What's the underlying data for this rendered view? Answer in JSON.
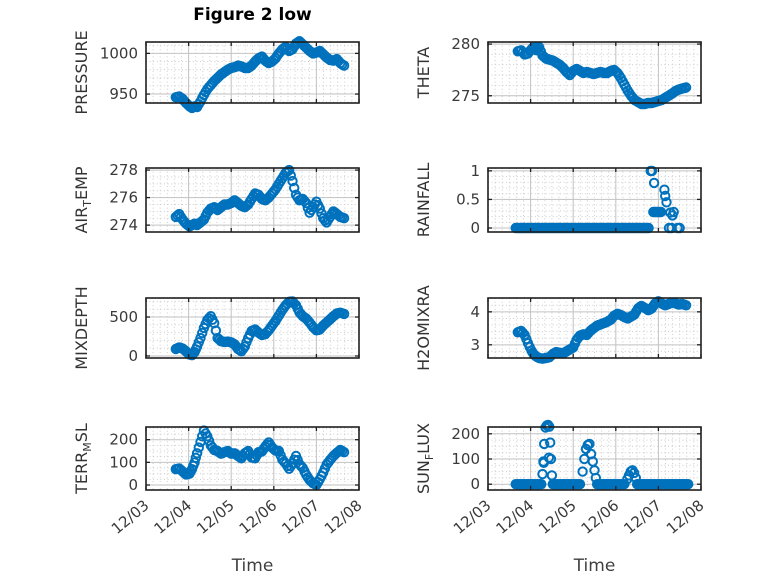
{
  "figure": {
    "title": "Figure 2 low",
    "xlabel": "Time",
    "x_unit": "days since 12/03 00:00",
    "x_tick_labels": [
      "12/03",
      "12/04",
      "12/05",
      "12/06",
      "12/07",
      "12/08"
    ],
    "marker_color": "#0072BD",
    "marker_style": "open-circle",
    "box_color": "#1f1f1f",
    "grid_major_color": "#c2c2c2",
    "grid_minor_color": "#cccccc",
    "text_color": "#3a3a3a",
    "grid": "major solid + minor dotted"
  },
  "chart_data": [
    {
      "name": "PRESSURE",
      "ylabel_parts": [
        {
          "t": "PRESSURE",
          "sub": false
        }
      ],
      "type": "scatter",
      "position": {
        "row": 0,
        "col": 0
      },
      "yticks": [
        950,
        1000
      ],
      "yminor_step": 10,
      "ylim": [
        939,
        1014
      ],
      "xlim_days": [
        0,
        5
      ],
      "show_x_tick_labels": false,
      "dense": true,
      "x_days": [
        0.7,
        0.78,
        0.86,
        0.94,
        1.02,
        1.08,
        1.14,
        1.2,
        1.28,
        1.36,
        1.44,
        1.52,
        1.6,
        1.68,
        1.76,
        1.84,
        1.92,
        2.0,
        2.08,
        2.16,
        2.24,
        2.32,
        2.4,
        2.48,
        2.56,
        2.64,
        2.72,
        2.8,
        2.88,
        2.96,
        3.04,
        3.12,
        3.2,
        3.28,
        3.36,
        3.44,
        3.52,
        3.6,
        3.68,
        3.76,
        3.84,
        3.92,
        4.0,
        4.08,
        4.16,
        4.24,
        4.32,
        4.4,
        4.48,
        4.56,
        4.65
      ],
      "y": [
        946,
        947,
        944,
        939,
        935,
        933,
        935,
        934,
        941,
        949,
        956,
        961,
        966,
        970,
        974,
        977,
        980,
        982,
        983,
        985,
        984,
        982,
        982,
        985,
        990,
        994,
        996,
        991,
        988,
        990,
        994,
        1000,
        1005,
        1008,
        1003,
        1005,
        1012,
        1015,
        1011,
        1007,
        1003,
        1000,
        1001,
        1003,
        999,
        995,
        992,
        991,
        993,
        988,
        985
      ]
    },
    {
      "name": "THETA",
      "ylabel_parts": [
        {
          "t": "THETA",
          "sub": false
        }
      ],
      "type": "scatter",
      "position": {
        "row": 0,
        "col": 1
      },
      "yticks": [
        275,
        280
      ],
      "yminor_step": 1,
      "ylim": [
        274.3,
        280.2
      ],
      "xlim_days": [
        0,
        5
      ],
      "show_x_tick_labels": false,
      "dense": true,
      "x_days": [
        0.7,
        0.78,
        0.86,
        0.94,
        1.02,
        1.08,
        1.14,
        1.2,
        1.28,
        1.36,
        1.44,
        1.52,
        1.6,
        1.68,
        1.76,
        1.84,
        1.92,
        2.0,
        2.08,
        2.16,
        2.24,
        2.32,
        2.4,
        2.48,
        2.56,
        2.64,
        2.72,
        2.8,
        2.88,
        2.96,
        3.04,
        3.12,
        3.2,
        3.28,
        3.36,
        3.44,
        3.52,
        3.6,
        3.68,
        3.76,
        3.84,
        3.92,
        4.0,
        4.08,
        4.16,
        4.24,
        4.32,
        4.4,
        4.48,
        4.56,
        4.65
      ],
      "y": [
        279.3,
        279.4,
        279.0,
        279.1,
        279.5,
        279.7,
        279.4,
        279.7,
        278.9,
        278.6,
        278.5,
        278.4,
        278.2,
        278.0,
        277.7,
        277.3,
        277.0,
        277.4,
        277.6,
        277.4,
        277.2,
        277.3,
        277.2,
        277.1,
        277.2,
        277.3,
        277.2,
        277.2,
        277.4,
        277.5,
        277.2,
        276.7,
        276.1,
        275.5,
        275.0,
        274.6,
        274.4,
        274.2,
        274.2,
        274.3,
        274.3,
        274.4,
        274.5,
        274.6,
        274.8,
        275.0,
        275.2,
        275.45,
        275.6,
        275.7,
        275.8
      ]
    },
    {
      "name": "AIR_TEMP",
      "ylabel_parts": [
        {
          "t": "AIR",
          "sub": false
        },
        {
          "t": "T",
          "sub": true
        },
        {
          "t": "EMP",
          "sub": false
        }
      ],
      "type": "scatter",
      "position": {
        "row": 1,
        "col": 0
      },
      "yticks": [
        274,
        276,
        278
      ],
      "yminor_step": 0.5,
      "ylim": [
        273.5,
        278.15
      ],
      "xlim_days": [
        0,
        5
      ],
      "show_x_tick_labels": false,
      "dense": true,
      "x_days": [
        0.7,
        0.78,
        0.86,
        0.94,
        1.02,
        1.08,
        1.14,
        1.2,
        1.28,
        1.36,
        1.44,
        1.52,
        1.6,
        1.68,
        1.76,
        1.84,
        1.92,
        2.0,
        2.08,
        2.16,
        2.24,
        2.32,
        2.4,
        2.48,
        2.56,
        2.64,
        2.72,
        2.8,
        2.88,
        2.96,
        3.04,
        3.12,
        3.2,
        3.28,
        3.36,
        3.44,
        3.52,
        3.6,
        3.68,
        3.76,
        3.84,
        3.92,
        4.0,
        4.08,
        4.16,
        4.24,
        4.32,
        4.4,
        4.48,
        4.56,
        4.65
      ],
      "y": [
        274.6,
        274.8,
        274.4,
        274.1,
        273.9,
        274.0,
        274.1,
        274.0,
        274.2,
        274.4,
        274.9,
        275.2,
        275.3,
        275.1,
        275.3,
        275.5,
        275.5,
        275.6,
        275.8,
        275.6,
        275.4,
        275.3,
        275.5,
        275.9,
        276.3,
        276.2,
        275.9,
        275.8,
        276.0,
        276.3,
        276.6,
        277.0,
        277.4,
        277.8,
        278.0,
        277.2,
        276.2,
        275.8,
        275.9,
        275.6,
        274.9,
        275.3,
        275.7,
        275.2,
        274.5,
        274.2,
        274.6,
        275.0,
        274.8,
        274.6,
        274.5
      ]
    },
    {
      "name": "RAINFALL",
      "ylabel_parts": [
        {
          "t": "RAINFALL",
          "sub": false
        }
      ],
      "type": "scatter",
      "position": {
        "row": 1,
        "col": 1
      },
      "yticks": [
        0,
        0.5,
        1
      ],
      "yminor_step": 0.1,
      "ylim": [
        -0.07,
        1.05
      ],
      "xlim_days": [
        0,
        5
      ],
      "show_x_tick_labels": false,
      "dense": false,
      "zero_spans": [
        [
          0.65,
          3.8
        ]
      ],
      "x_days": [
        3.82,
        3.85,
        3.9,
        3.88,
        3.91,
        3.94,
        3.97,
        4.0,
        4.03,
        4.06,
        4.14,
        4.16,
        4.19,
        4.28,
        4.33,
        4.36,
        4.25,
        4.31,
        4.45,
        4.5
      ],
      "y": [
        1.0,
        1.0,
        0.79,
        0.28,
        0.28,
        0.28,
        0.28,
        0.28,
        0.28,
        0.28,
        0.67,
        0.56,
        0.45,
        0.27,
        0.22,
        0.28,
        0,
        0,
        0,
        0
      ]
    },
    {
      "name": "MIXDEPTH",
      "ylabel_parts": [
        {
          "t": "MIXDEPTH",
          "sub": false
        }
      ],
      "type": "scatter",
      "position": {
        "row": 2,
        "col": 0
      },
      "yticks": [
        0,
        500
      ],
      "yminor_step": 100,
      "ylim": [
        -26,
        744
      ],
      "xlim_days": [
        0,
        5
      ],
      "show_x_tick_labels": false,
      "dense": true,
      "x_days": [
        0.7,
        0.78,
        0.86,
        0.94,
        1.02,
        1.08,
        1.14,
        1.2,
        1.28,
        1.36,
        1.44,
        1.52,
        1.6,
        1.68,
        1.76,
        1.84,
        1.92,
        2.0,
        2.08,
        2.16,
        2.24,
        2.32,
        2.4,
        2.48,
        2.56,
        2.64,
        2.72,
        2.8,
        2.88,
        2.96,
        3.04,
        3.12,
        3.2,
        3.28,
        3.36,
        3.44,
        3.52,
        3.6,
        3.68,
        3.76,
        3.84,
        3.92,
        4.0,
        4.08,
        4.16,
        4.24,
        4.32,
        4.4,
        4.48,
        4.56,
        4.65
      ],
      "y": [
        90,
        110,
        95,
        60,
        20,
        10,
        50,
        120,
        230,
        360,
        460,
        510,
        420,
        230,
        190,
        180,
        185,
        175,
        150,
        90,
        60,
        120,
        230,
        320,
        340,
        300,
        270,
        280,
        330,
        390,
        450,
        520,
        590,
        650,
        695,
        700,
        650,
        560,
        510,
        480,
        430,
        370,
        330,
        340,
        390,
        430,
        470,
        510,
        545,
        555,
        540
      ]
    },
    {
      "name": "H2OMIXRA",
      "ylabel_parts": [
        {
          "t": "H2OMIXRA",
          "sub": false
        }
      ],
      "type": "scatter",
      "position": {
        "row": 2,
        "col": 1
      },
      "yticks": [
        3,
        4
      ],
      "yminor_step": 0.2,
      "ylim": [
        2.6,
        4.42
      ],
      "xlim_days": [
        0,
        5
      ],
      "show_x_tick_labels": false,
      "dense": true,
      "x_days": [
        0.7,
        0.78,
        0.86,
        0.94,
        1.02,
        1.08,
        1.14,
        1.2,
        1.28,
        1.36,
        1.44,
        1.52,
        1.6,
        1.68,
        1.76,
        1.84,
        1.92,
        2.0,
        2.08,
        2.16,
        2.24,
        2.32,
        2.4,
        2.48,
        2.56,
        2.64,
        2.72,
        2.8,
        2.88,
        2.96,
        3.04,
        3.12,
        3.2,
        3.28,
        3.36,
        3.44,
        3.52,
        3.6,
        3.68,
        3.76,
        3.84,
        3.92,
        4.0,
        4.08,
        4.16,
        4.24,
        4.32,
        4.4,
        4.48,
        4.56,
        4.65
      ],
      "y": [
        3.38,
        3.42,
        3.3,
        3.05,
        2.82,
        2.7,
        2.64,
        2.6,
        2.58,
        2.6,
        2.62,
        2.72,
        2.78,
        2.76,
        2.74,
        2.8,
        2.86,
        2.92,
        3.15,
        3.28,
        3.32,
        3.3,
        3.42,
        3.5,
        3.58,
        3.62,
        3.66,
        3.7,
        3.76,
        3.88,
        3.94,
        3.9,
        3.84,
        3.8,
        3.86,
        3.92,
        4.1,
        4.18,
        4.12,
        4.05,
        4.1,
        4.25,
        4.32,
        4.25,
        4.2,
        4.24,
        4.28,
        4.26,
        4.22,
        4.24,
        4.2
      ]
    },
    {
      "name": "TERR_MSL",
      "ylabel_parts": [
        {
          "t": "TERR",
          "sub": false
        },
        {
          "t": "M",
          "sub": true
        },
        {
          "t": "SL",
          "sub": false
        }
      ],
      "type": "scatter",
      "position": {
        "row": 3,
        "col": 0
      },
      "yticks": [
        0,
        100,
        200
      ],
      "yminor_step": 25,
      "ylim": [
        -22,
        256
      ],
      "xlim_days": [
        0,
        5
      ],
      "show_x_tick_labels": true,
      "dense": true,
      "x_days": [
        0.7,
        0.78,
        0.86,
        0.94,
        1.02,
        1.08,
        1.14,
        1.2,
        1.28,
        1.36,
        1.44,
        1.52,
        1.6,
        1.68,
        1.76,
        1.84,
        1.92,
        2.0,
        2.08,
        2.16,
        2.24,
        2.32,
        2.4,
        2.48,
        2.56,
        2.64,
        2.72,
        2.8,
        2.88,
        2.96,
        3.04,
        3.12,
        3.2,
        3.28,
        3.36,
        3.44,
        3.52,
        3.6,
        3.68,
        3.76,
        3.84,
        3.92,
        4.0,
        4.08,
        4.16,
        4.24,
        4.32,
        4.4,
        4.48,
        4.56,
        4.65
      ],
      "y": [
        70,
        73,
        60,
        47,
        50,
        70,
        100,
        140,
        190,
        240,
        215,
        175,
        155,
        150,
        138,
        145,
        150,
        138,
        140,
        128,
        118,
        140,
        150,
        122,
        118,
        145,
        148,
        170,
        188,
        165,
        152,
        150,
        112,
        95,
        72,
        95,
        128,
        92,
        75,
        45,
        22,
        8,
        0,
        25,
        55,
        90,
        110,
        128,
        142,
        155,
        145
      ]
    },
    {
      "name": "SUN_FLUX",
      "ylabel_parts": [
        {
          "t": "SUN",
          "sub": false
        },
        {
          "t": "F",
          "sub": true
        },
        {
          "t": "LUX",
          "sub": false
        }
      ],
      "type": "scatter",
      "position": {
        "row": 3,
        "col": 1
      },
      "yticks": [
        0,
        100,
        200
      ],
      "yminor_step": 25,
      "ylim": [
        -23,
        227
      ],
      "xlim_days": [
        0,
        5
      ],
      "show_x_tick_labels": true,
      "dense": false,
      "zero_spans": [
        [
          0.65,
          1.26
        ],
        [
          1.52,
          2.2
        ],
        [
          2.56,
          3.24
        ],
        [
          3.5,
          4.72
        ]
      ],
      "x_days": [
        1.28,
        1.3,
        1.31,
        1.32,
        1.35,
        1.38,
        1.41,
        1.43,
        1.44,
        1.46,
        1.48,
        1.5,
        2.22,
        2.26,
        2.3,
        2.34,
        2.38,
        2.42,
        2.46,
        2.5,
        2.53,
        3.27,
        3.31,
        3.35,
        3.39,
        3.43,
        3.47
      ],
      "y": [
        40,
        90,
        85,
        160,
        225,
        233,
        235,
        105,
        228,
        165,
        100,
        35,
        50,
        100,
        140,
        155,
        160,
        120,
        90,
        55,
        25,
        20,
        35,
        50,
        55,
        45,
        25
      ]
    }
  ]
}
